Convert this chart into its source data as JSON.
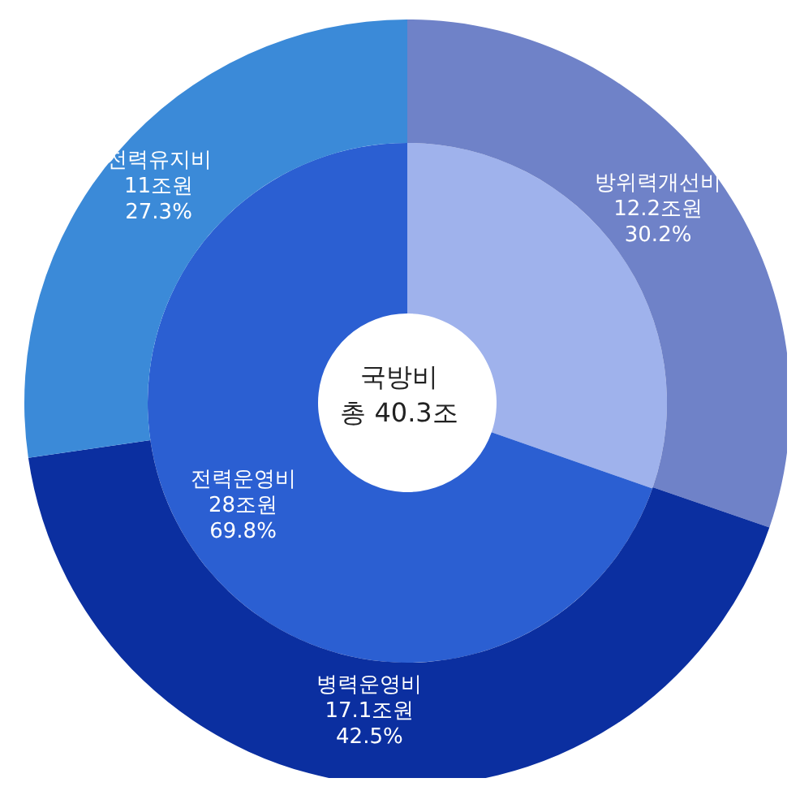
{
  "chart_data": [
    {
      "type": "donut",
      "categories": [
        "방위력개선비",
        "병력운영비",
        "전력유지비"
      ],
      "values": [
        12.2,
        17.1,
        11
      ],
      "colors": [
        "#6f82c8",
        "#0b2fa0",
        "#3b8ad8"
      ],
      "value_labels": [
        "12.2조원\n30.2%",
        "17.1조원\n42.5%",
        "11조원\n27.3%"
      ]
    },
    {
      "type": "donut",
      "title": "국방비",
      "subtitle": "총 40.3조",
      "categories": [
        null,
        "전력운영비"
      ],
      "values": [
        12.2,
        28
      ],
      "colors": [
        "#9fb2ec",
        "#2b5fd2"
      ],
      "value_labels": [
        null,
        "28조원\n69.8%"
      ]
    }
  ]
}
